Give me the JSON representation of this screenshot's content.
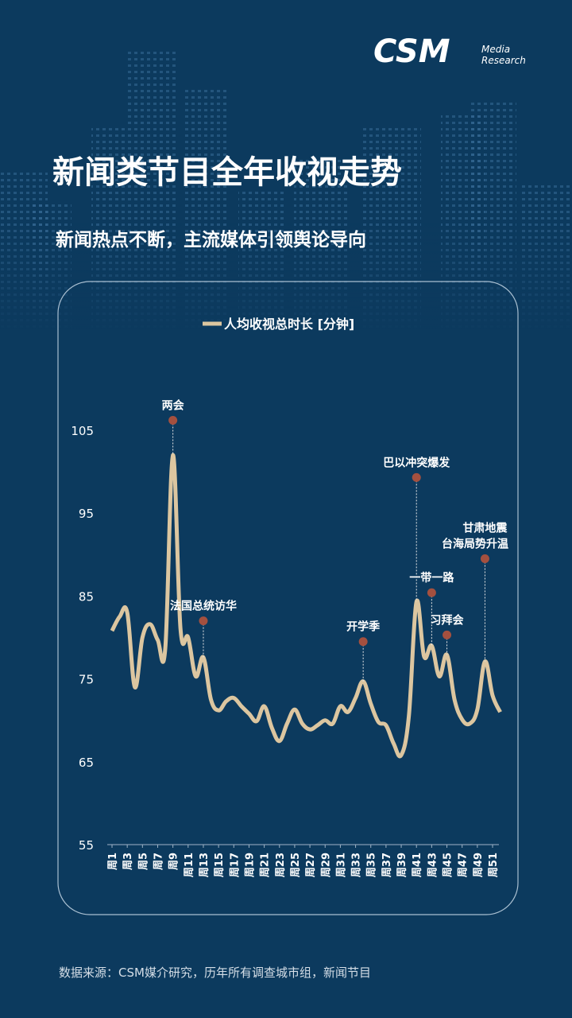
{
  "logo": {
    "brand": "CSM",
    "line1": "Media",
    "line2": "Research"
  },
  "title": "新闻类节目全年收视走势",
  "subtitle": "新闻热点不断，主流媒体引领舆论导向",
  "source": "数据来源：CSM媒介研究，历年所有调查城市组，新闻节目",
  "chart_data": {
    "type": "line",
    "x": [
      1,
      2,
      3,
      4,
      5,
      6,
      7,
      8,
      9,
      10,
      11,
      12,
      13,
      14,
      15,
      16,
      17,
      18,
      19,
      20,
      21,
      22,
      23,
      24,
      25,
      26,
      27,
      28,
      29,
      30,
      31,
      32,
      33,
      34,
      35,
      36,
      37,
      38,
      39,
      40,
      41,
      42,
      43,
      44,
      45,
      46,
      47,
      48,
      49,
      50,
      51,
      52
    ],
    "xlim": [
      1,
      52
    ],
    "xticks": [
      {
        "value": 1,
        "label": "周1"
      },
      {
        "value": 3,
        "label": "周3"
      },
      {
        "value": 5,
        "label": "周5"
      },
      {
        "value": 7,
        "label": "周7"
      },
      {
        "value": 9,
        "label": "周9"
      },
      {
        "value": 11,
        "label": "周11"
      },
      {
        "value": 13,
        "label": "周13"
      },
      {
        "value": 15,
        "label": "周15"
      },
      {
        "value": 17,
        "label": "周17"
      },
      {
        "value": 19,
        "label": "周19"
      },
      {
        "value": 21,
        "label": "周21"
      },
      {
        "value": 23,
        "label": "周23"
      },
      {
        "value": 25,
        "label": "周25"
      },
      {
        "value": 27,
        "label": "周27"
      },
      {
        "value": 29,
        "label": "周29"
      },
      {
        "value": 31,
        "label": "周31"
      },
      {
        "value": 33,
        "label": "周33"
      },
      {
        "value": 35,
        "label": "周35"
      },
      {
        "value": 37,
        "label": "周37"
      },
      {
        "value": 39,
        "label": "周39"
      },
      {
        "value": 41,
        "label": "周41"
      },
      {
        "value": 43,
        "label": "周43"
      },
      {
        "value": 45,
        "label": "周45"
      },
      {
        "value": 47,
        "label": "周47"
      },
      {
        "value": 49,
        "label": "周49"
      },
      {
        "value": 51,
        "label": "周51"
      }
    ],
    "ylim": [
      55,
      105
    ],
    "yticks": [
      55,
      65,
      75,
      85,
      95,
      105
    ],
    "series": [
      {
        "name": "人均收视总时长 [分钟]",
        "color": "#dcc6a0",
        "values": [
          80.8,
          82.5,
          83,
          74,
          80,
          81.6,
          79.7,
          78.7,
          102,
          81,
          80,
          75.3,
          77.6,
          72.5,
          71.2,
          72.3,
          72.7,
          71.7,
          70.8,
          69.9,
          71.7,
          69.1,
          67.5,
          69.6,
          71.3,
          69.6,
          68.9,
          69.4,
          70,
          69.6,
          71.7,
          71,
          72.7,
          74.7,
          72,
          69.8,
          69.4,
          67.2,
          65.8,
          70.5,
          84.3,
          77.7,
          79,
          75.3,
          77.9,
          72.5,
          70.1,
          69.6,
          71.3,
          77.1,
          73,
          71
        ]
      }
    ],
    "annotations": [
      {
        "text": [
          "两会"
        ],
        "x": 9,
        "y": 106.2
      },
      {
        "text": [
          "法国总统访华"
        ],
        "x": 13,
        "y": 82
      },
      {
        "text": [
          "开学季"
        ],
        "x": 34,
        "y": 79.5
      },
      {
        "text": [
          "巴以冲突爆发"
        ],
        "x": 41,
        "y": 99.3
      },
      {
        "text": [
          "一带一路"
        ],
        "x": 43,
        "y": 85.4
      },
      {
        "text": [
          "习拜会"
        ],
        "x": 45,
        "y": 80.3
      },
      {
        "text": [
          "甘肃地震",
          "台海局势升温"
        ],
        "x": 50,
        "y": 89.5
      }
    ],
    "marker_color": "#a4503f"
  }
}
